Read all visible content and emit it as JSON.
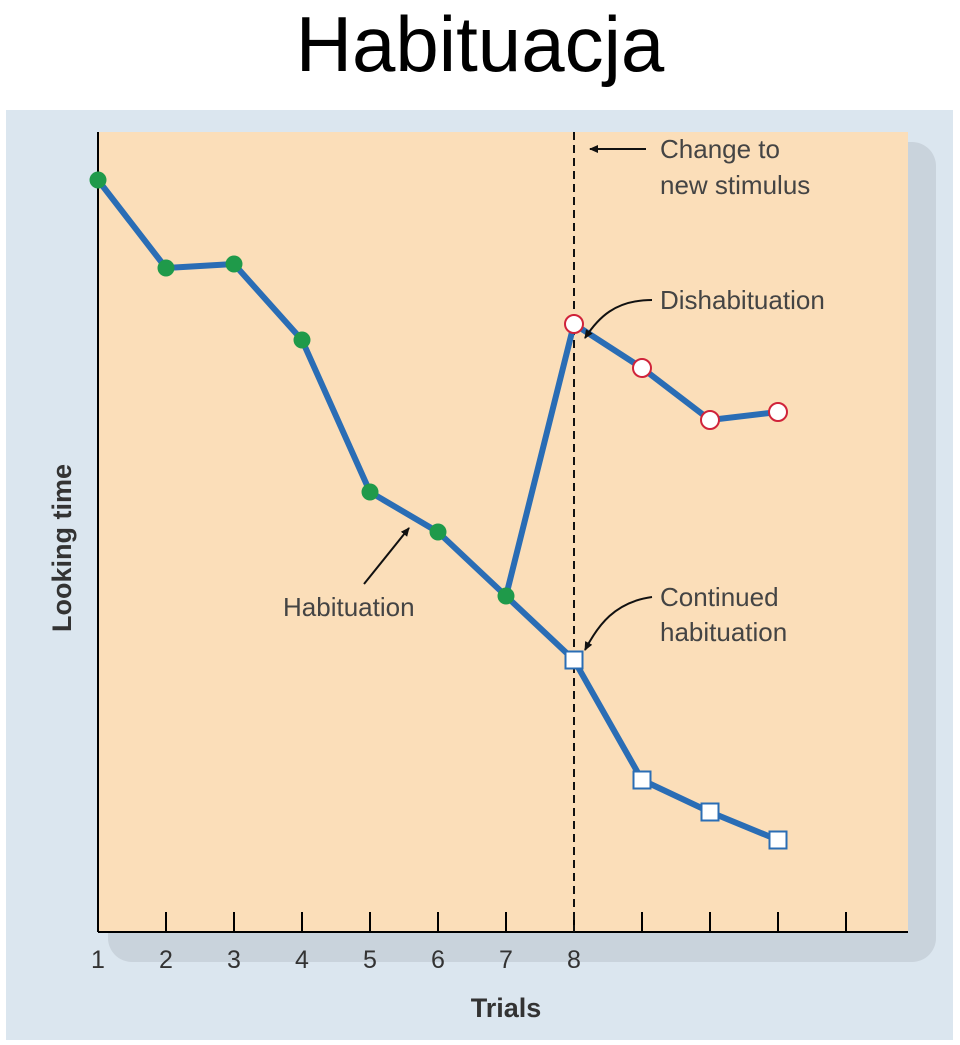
{
  "slide": {
    "title": "Habituacja"
  },
  "colors": {
    "panel_bg": "#dbe6ef",
    "plot_bg": "#fbdeb9",
    "shadow": "#c9d3dc",
    "line": "#2a6db5",
    "habituation_point": "#1f9a4a",
    "dishabituation_point_stroke": "#d0233a",
    "continued_point_stroke": "#2a6db5",
    "axis": "#000000",
    "text": "#444444"
  },
  "chart_data": {
    "type": "line",
    "xlabel": "Trials",
    "ylabel": "Looking time",
    "x_tick_labels": [
      "1",
      "2",
      "3",
      "4",
      "5",
      "6",
      "7",
      "8",
      "",
      "",
      "",
      ""
    ],
    "xlim": [
      1,
      13
    ],
    "ylim": [
      0,
      100
    ],
    "y_ticks_shown": false,
    "change_marker_x": 8,
    "series": [
      {
        "marker": "filled-circle",
        "x": [
          1,
          2,
          3,
          4,
          5,
          6,
          7
        ],
        "values": [
          94,
          83,
          83.5,
          74,
          55,
          50,
          42
        ]
      },
      {
        "marker": "open-circle",
        "x": [
          7,
          8,
          9,
          10,
          11
        ],
        "values": [
          42,
          76,
          70.5,
          64,
          65
        ]
      },
      {
        "marker": "open-square",
        "x": [
          7,
          8,
          9,
          10,
          11
        ],
        "values": [
          42,
          34,
          19,
          15,
          11.5
        ]
      }
    ],
    "annotations": {
      "change": [
        "Change to",
        "new stimulus"
      ],
      "dishabituation": "Dishabituation",
      "habituation": "Habituation",
      "continued": [
        "Continued",
        "habituation"
      ]
    }
  }
}
